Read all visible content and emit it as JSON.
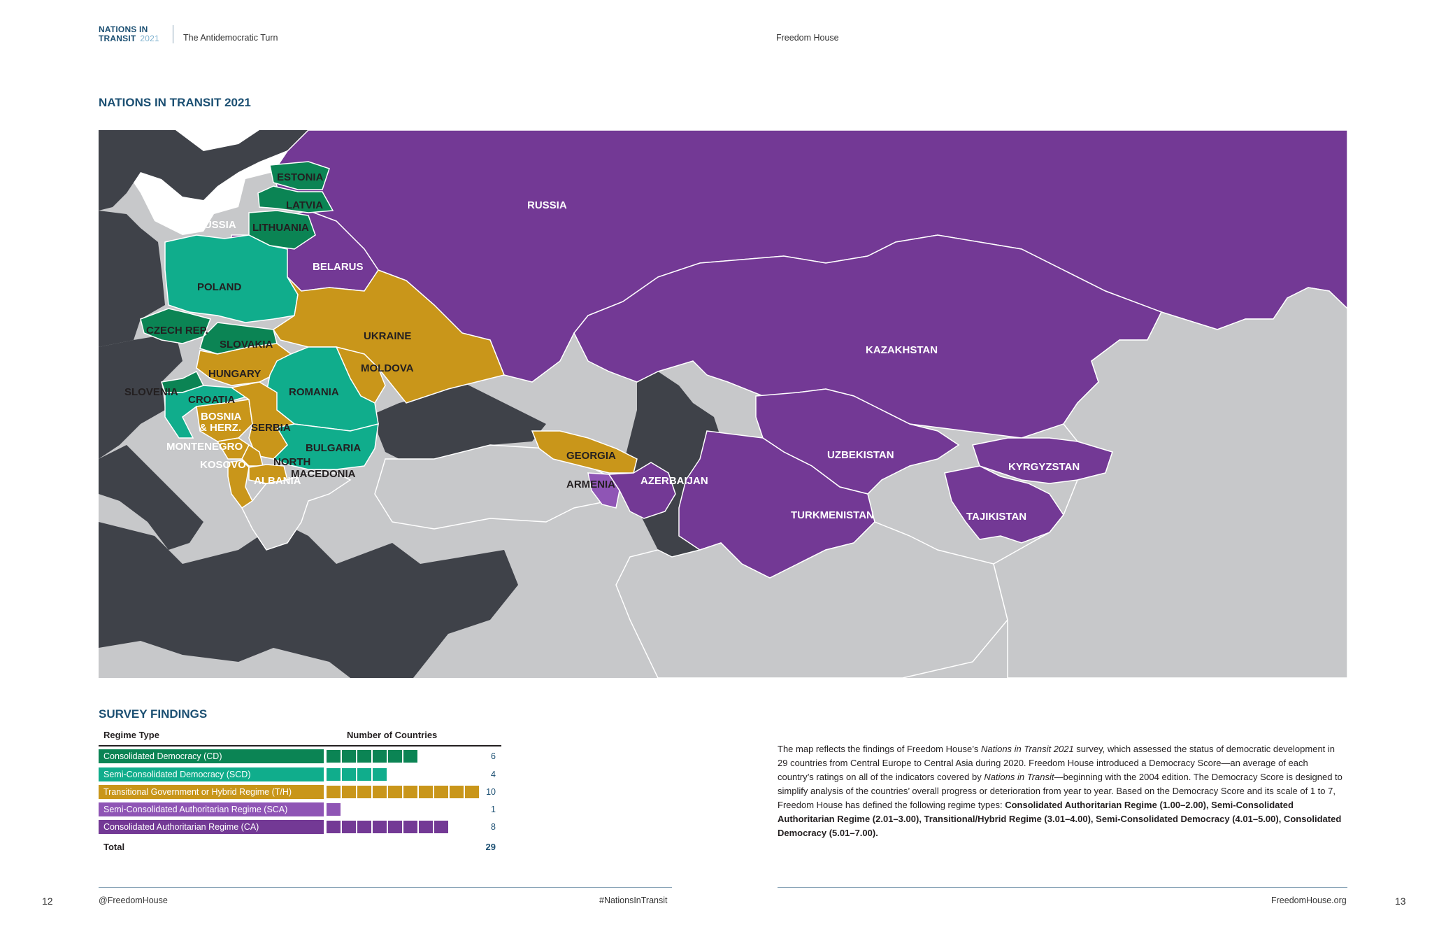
{
  "header": {
    "brand_line1": "NATIONS IN",
    "brand_line2": "TRANSIT",
    "brand_year": "2021",
    "subtitle": "The Antidemocratic Turn",
    "org": "Freedom House"
  },
  "map": {
    "title": "NATIONS IN TRANSIT 2021",
    "colors": {
      "consolidated_democracy": "#0b8454",
      "semi_consolidated_democracy": "#10ad8c",
      "transitional_hybrid": "#c9961a",
      "semi_consolidated_authoritarian": "#8f55b5",
      "consolidated_authoritarian": "#733995",
      "not_surveyed": "#3f4249",
      "outside_region": "#c7c8ca",
      "water": "#ffffff"
    },
    "labels": {
      "russia_west": "RUSSIA",
      "russia": "RUSSIA",
      "estonia": "ESTONIA",
      "latvia": "LATVIA",
      "lithuania": "LITHUANIA",
      "belarus": "BELARUS",
      "poland": "POLAND",
      "czech": "CZECH REP.",
      "slovakia": "SLOVAKIA",
      "ukraine": "UKRAINE",
      "moldova": "MOLDOVA",
      "hungary": "HUNGARY",
      "romania": "ROMANIA",
      "slovenia": "SLOVENIA",
      "croatia": "CROATIA",
      "bosnia1": "BOSNIA",
      "bosnia2": "& HERZ.",
      "serbia": "SERBIA",
      "montenegro": "MONTENEGRO",
      "bulgaria": "BULGARIA",
      "kosovo": "KOSOVO",
      "north1": "NORTH",
      "north2": "MACEDONIA",
      "albania": "ALBANIA",
      "georgia": "GEORGIA",
      "armenia": "ARMENIA",
      "azerbaijan": "AZERBAIJAN",
      "kazakhstan": "KAZAKHSTAN",
      "uzbekistan": "UZBEKISTAN",
      "turkmenistan": "TURKMENISTAN",
      "kyrgyzstan": "KYRGYZSTAN",
      "tajikistan": "TAJIKISTAN"
    }
  },
  "survey": {
    "title": "SURVEY FINDINGS",
    "col_regime": "Regime Type",
    "col_count": "Number of Countries",
    "rows": [
      {
        "label": "Consolidated Democracy (CD)",
        "count": "6",
        "n": 6,
        "color": "#0b8454"
      },
      {
        "label": "Semi-Consolidated Democracy (SCD)",
        "count": "4",
        "n": 4,
        "color": "#10ad8c"
      },
      {
        "label": "Transitional Government or Hybrid Regime (T/H)",
        "count": "10",
        "n": 10,
        "color": "#c9961a"
      },
      {
        "label": "Semi-Consolidated Authoritarian Regime (SCA)",
        "count": "1",
        "n": 1,
        "color": "#8f55b5"
      },
      {
        "label": "Consolidated Authoritarian Regime (CA)",
        "count": "8",
        "n": 8,
        "color": "#733995"
      }
    ],
    "total_label": "Total",
    "total_value": "29"
  },
  "description": {
    "p1": "The map reflects the findings of Freedom House’s ",
    "em1": "Nations in Transit 2021",
    "p2": " survey, which assessed the status of democratic development in 29 countries from Central Europe to Central Asia during 2020. Freedom House introduced a Democracy Score—an average of each country’s ratings on all of the indicators covered by ",
    "em2": "Nations in Transit",
    "p3": "—beginning with the 2004 edition. The Democracy Score is designed to simplify analysis of the countries’ overall progress or deterioration from year to year. Based on the Democracy Score and its scale of 1 to 7, Freedom House has defined the following regime types: ",
    "bold": "Consolidated Authoritarian Regime (1.00–2.00), Semi-Consolidated Authoritarian Regime (2.01–3.00), Transitional/Hybrid Regime (3.01–4.00), Semi-Consolidated Democracy (4.01–5.00), Consolidated Democracy (5.01–7.00)."
  },
  "footer": {
    "left_page": "12",
    "handle": "@FreedomHouse",
    "hashtag": "#NationsInTransit",
    "site": "FreedomHouse.org",
    "right_page": "13"
  }
}
